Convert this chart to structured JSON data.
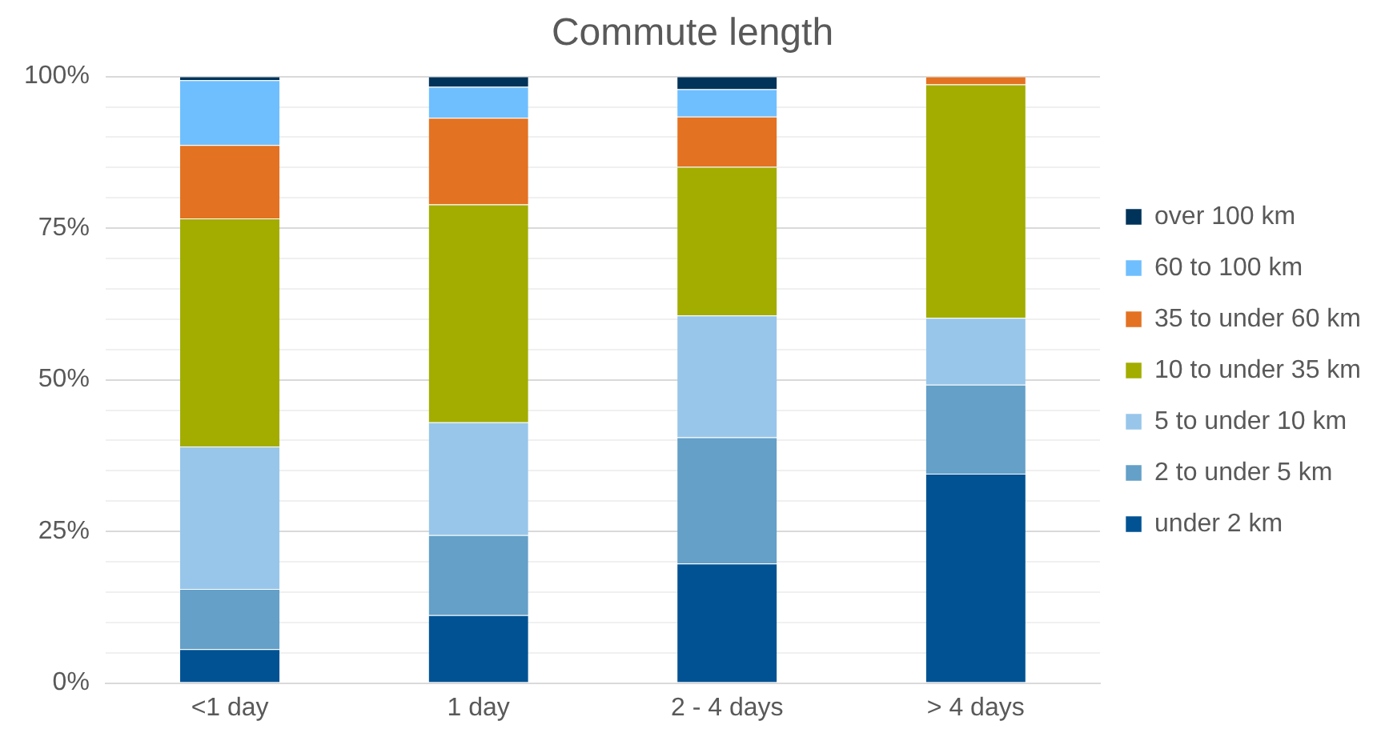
{
  "chart_data": {
    "type": "bar",
    "title": "Commute length",
    "stacked": true,
    "categories": [
      "<1 day",
      "1 day",
      "2 - 4 days",
      "> 4 days"
    ],
    "series": [
      {
        "name": "under 2 km",
        "color": "#005293",
        "values": [
          5.6,
          11.2,
          19.7,
          34.5
        ]
      },
      {
        "name": "2 to under 5 km",
        "color": "#64a0c8",
        "values": [
          9.9,
          13.2,
          20.8,
          14.7
        ]
      },
      {
        "name": "5 to under 10 km",
        "color": "#98c6ea",
        "values": [
          23.5,
          18.6,
          20.1,
          11.0
        ]
      },
      {
        "name": "10 to under 35 km",
        "color": "#a2ad00",
        "values": [
          37.6,
          35.9,
          24.5,
          38.5
        ]
      },
      {
        "name": "35 to under 60 km",
        "color": "#e37222",
        "values": [
          12.1,
          14.3,
          8.3,
          1.3
        ]
      },
      {
        "name": "60 to 100 km",
        "color": "#6fbfff",
        "values": [
          10.7,
          5.1,
          4.5,
          0
        ]
      },
      {
        "name": "over 100 km",
        "color": "#003359",
        "values": [
          0.6,
          1.7,
          2.1,
          0
        ]
      }
    ],
    "ylim": [
      0,
      100
    ],
    "yticks": [
      {
        "value": 0,
        "label": "0%"
      },
      {
        "value": 5,
        "label": null
      },
      {
        "value": 10,
        "label": null
      },
      {
        "value": 15,
        "label": null
      },
      {
        "value": 20,
        "label": null
      },
      {
        "value": 25,
        "label": "25%"
      },
      {
        "value": 30,
        "label": null
      },
      {
        "value": 35,
        "label": null
      },
      {
        "value": 40,
        "label": null
      },
      {
        "value": 45,
        "label": null
      },
      {
        "value": 50,
        "label": "50%"
      },
      {
        "value": 55,
        "label": null
      },
      {
        "value": 60,
        "label": null
      },
      {
        "value": 65,
        "label": null
      },
      {
        "value": 70,
        "label": null
      },
      {
        "value": 75,
        "label": "75%"
      },
      {
        "value": 80,
        "label": null
      },
      {
        "value": 85,
        "label": null
      },
      {
        "value": 90,
        "label": null
      },
      {
        "value": 95,
        "label": null
      },
      {
        "value": 100,
        "label": "100%"
      }
    ],
    "grid": "y",
    "legend": "right"
  }
}
